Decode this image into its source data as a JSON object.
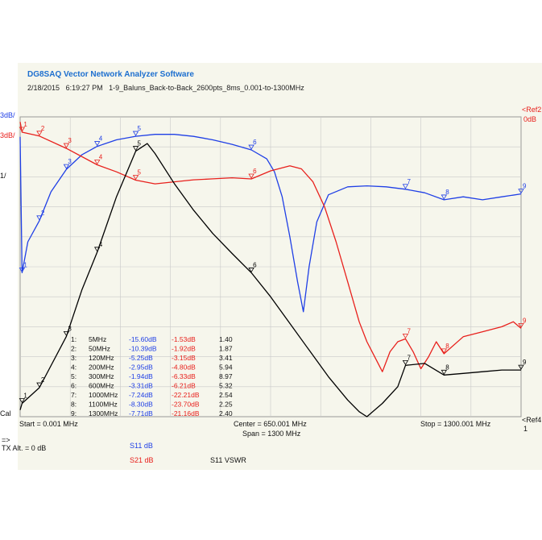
{
  "header": {
    "app_title": "DG8SAQ Vector Network Analyzer Software",
    "date": "2/18/2015",
    "time": "6:19:27 PM",
    "measurement": "1-9_Baluns_Back-to-Back_2600pts_8ms_0.001-to-1300MHz"
  },
  "left_labels": {
    "blue_ref": "3dB/",
    "red_ref": "3dB/",
    "black_ref": "1/",
    "cal": "Cal"
  },
  "right_labels": {
    "ref_top": "<Ref2",
    "ref_value": "0dB",
    "ref_bottom": "<Ref4",
    "ref_bottom_value": "1"
  },
  "footer": {
    "start": "Start = 0.001 MHz",
    "center": "Center = 650.001 MHz",
    "span": "Span = 1300 MHz",
    "stop": "Stop = 1300.001 MHz",
    "arrow": "=>",
    "tx_alt": "TX Alt.  = 0 dB",
    "legend_s11": "S11   dB",
    "legend_s21": "S21   dB",
    "legend_vswr": "S11   VSWR"
  },
  "colors": {
    "s11": "#1f3fe6",
    "s21": "#e8201c",
    "vswr": "#000000",
    "grid": "#c9c9c9",
    "background": "#f6f6ec"
  },
  "chart_data": {
    "type": "line",
    "title": "DG8SAQ Vector Network Analyzer Software",
    "x_start_mhz": 0.001,
    "x_stop_mhz": 1300.001,
    "grid": true,
    "series": [
      {
        "name": "S11 dB",
        "color": "#1f3fe6",
        "points": [
          [
            0,
            -2
          ],
          [
            5,
            -15.6
          ],
          [
            20,
            -12.5
          ],
          [
            50,
            -10.39
          ],
          [
            80,
            -7.5
          ],
          [
            120,
            -5.25
          ],
          [
            160,
            -3.8
          ],
          [
            200,
            -2.95
          ],
          [
            250,
            -2.3
          ],
          [
            300,
            -1.94
          ],
          [
            350,
            -1.75
          ],
          [
            400,
            -1.75
          ],
          [
            450,
            -1.95
          ],
          [
            500,
            -2.3
          ],
          [
            550,
            -2.75
          ],
          [
            600,
            -3.31
          ],
          [
            640,
            -4.2
          ],
          [
            660,
            -5.5
          ],
          [
            680,
            -8
          ],
          [
            700,
            -12
          ],
          [
            720,
            -16.5
          ],
          [
            735,
            -19.5
          ],
          [
            750,
            -15
          ],
          [
            770,
            -10.5
          ],
          [
            800,
            -7.8
          ],
          [
            850,
            -7.0
          ],
          [
            900,
            -6.9
          ],
          [
            950,
            -7.0
          ],
          [
            1000,
            -7.24
          ],
          [
            1050,
            -7.6
          ],
          [
            1100,
            -8.3
          ],
          [
            1150,
            -8.0
          ],
          [
            1200,
            -8.3
          ],
          [
            1250,
            -8.0
          ],
          [
            1300,
            -7.71
          ]
        ]
      },
      {
        "name": "S21 dB",
        "color": "#e8201c",
        "points": [
          [
            0,
            -0.5
          ],
          [
            5,
            -1.53
          ],
          [
            50,
            -1.92
          ],
          [
            120,
            -3.15
          ],
          [
            200,
            -4.8
          ],
          [
            250,
            -5.5
          ],
          [
            300,
            -6.33
          ],
          [
            350,
            -6.7
          ],
          [
            400,
            -6.5
          ],
          [
            450,
            -6.3
          ],
          [
            500,
            -6.2
          ],
          [
            550,
            -6.1
          ],
          [
            600,
            -6.21
          ],
          [
            650,
            -5.4
          ],
          [
            700,
            -4.9
          ],
          [
            730,
            -5.2
          ],
          [
            760,
            -6.5
          ],
          [
            790,
            -9
          ],
          [
            820,
            -12.5
          ],
          [
            850,
            -16.5
          ],
          [
            880,
            -20.5
          ],
          [
            900,
            -22.5
          ],
          [
            920,
            -24
          ],
          [
            940,
            -25.5
          ],
          [
            960,
            -23.5
          ],
          [
            980,
            -22.5
          ],
          [
            1000,
            -22.21
          ],
          [
            1020,
            -23.5
          ],
          [
            1040,
            -25.2
          ],
          [
            1060,
            -24
          ],
          [
            1080,
            -22.5
          ],
          [
            1100,
            -23.7
          ],
          [
            1150,
            -22
          ],
          [
            1200,
            -21.5
          ],
          [
            1250,
            -21
          ],
          [
            1280,
            -20.5
          ],
          [
            1300,
            -21.16
          ]
        ]
      },
      {
        "name": "S11 VSWR",
        "color": "#000000",
        "points": [
          [
            0,
            1.2
          ],
          [
            5,
            1.4
          ],
          [
            50,
            1.87
          ],
          [
            120,
            3.41
          ],
          [
            160,
            4.8
          ],
          [
            200,
            5.94
          ],
          [
            250,
            7.6
          ],
          [
            300,
            8.97
          ],
          [
            330,
            9.2
          ],
          [
            350,
            8.9
          ],
          [
            400,
            8.0
          ],
          [
            450,
            7.2
          ],
          [
            500,
            6.5
          ],
          [
            550,
            5.9
          ],
          [
            600,
            5.32
          ],
          [
            650,
            4.6
          ],
          [
            700,
            3.8
          ],
          [
            750,
            3.0
          ],
          [
            800,
            2.2
          ],
          [
            850,
            1.5
          ],
          [
            880,
            1.15
          ],
          [
            900,
            1.0
          ],
          [
            940,
            1.4
          ],
          [
            980,
            1.9
          ],
          [
            1000,
            2.54
          ],
          [
            1050,
            2.6
          ],
          [
            1100,
            2.25
          ],
          [
            1150,
            2.3
          ],
          [
            1200,
            2.35
          ],
          [
            1250,
            2.4
          ],
          [
            1300,
            2.4
          ]
        ]
      }
    ],
    "markers": {
      "columns": [
        "#",
        "Freq",
        "S11 dB",
        "S21 dB",
        "VSWR"
      ],
      "rows": [
        [
          "1:",
          "5MHz",
          "-15.60dB",
          "-1.53dB",
          "1.40"
        ],
        [
          "2:",
          "50MHz",
          "-10.39dB",
          "-1.92dB",
          "1.87"
        ],
        [
          "3:",
          "120MHz",
          "-5.25dB",
          "-3.15dB",
          "3.41"
        ],
        [
          "4:",
          "200MHz",
          "-2.95dB",
          "-4.80dB",
          "5.94"
        ],
        [
          "5:",
          "300MHz",
          "-1.94dB",
          "-6.33dB",
          "8.97"
        ],
        [
          "6:",
          "600MHz",
          "-3.31dB",
          "-6.21dB",
          "5.32"
        ],
        [
          "7:",
          "1000MHz",
          "-7.24dB",
          "-22.21dB",
          "2.54"
        ],
        [
          "8:",
          "1100MHz",
          "-8.30dB",
          "-23.70dB",
          "2.25"
        ],
        [
          "9:",
          "1300MHz",
          "-7.71dB",
          "-21.16dB",
          "2.40"
        ]
      ],
      "freqs_mhz": [
        5,
        50,
        120,
        200,
        300,
        600,
        1000,
        1100,
        1300
      ]
    }
  }
}
